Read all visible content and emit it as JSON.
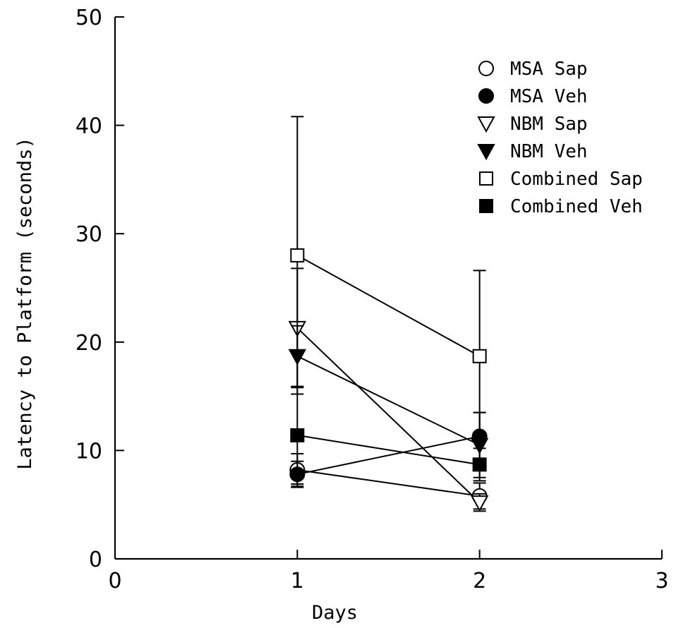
{
  "chart_data": {
    "type": "line",
    "title": "",
    "xlabel": "Days",
    "ylabel": "Latency to Platform (seconds)",
    "xlim": [
      0,
      3
    ],
    "ylim": [
      0,
      50
    ],
    "x_ticks": [
      0,
      1,
      2,
      3
    ],
    "y_ticks": [
      0,
      10,
      20,
      30,
      40,
      50
    ],
    "grid": false,
    "legend_position": "top-right",
    "x": [
      1,
      2
    ],
    "series": [
      {
        "name": "MSA Sap",
        "marker": "open-circle",
        "values": [
          8.2,
          5.8
        ],
        "errors": [
          1.5,
          1.2
        ]
      },
      {
        "name": "MSA Veh",
        "marker": "filled-circle",
        "values": [
          7.8,
          11.3
        ],
        "errors": [
          1.2,
          2.2
        ]
      },
      {
        "name": "NBM Sap",
        "marker": "open-triangle-down",
        "values": [
          21.3,
          5.2
        ],
        "errors": [
          5.5,
          0.8
        ]
      },
      {
        "name": "NBM Veh",
        "marker": "filled-triangle-down",
        "values": [
          18.7,
          10.5
        ],
        "errors": [
          2.8,
          3.0
        ]
      },
      {
        "name": "Combined Sap",
        "marker": "open-square",
        "values": [
          28.0,
          18.7
        ],
        "errors": [
          12.8,
          7.9
        ]
      },
      {
        "name": "Combined Veh",
        "marker": "filled-square",
        "values": [
          11.4,
          8.7
        ],
        "errors": [
          4.5,
          1.5
        ]
      }
    ]
  }
}
